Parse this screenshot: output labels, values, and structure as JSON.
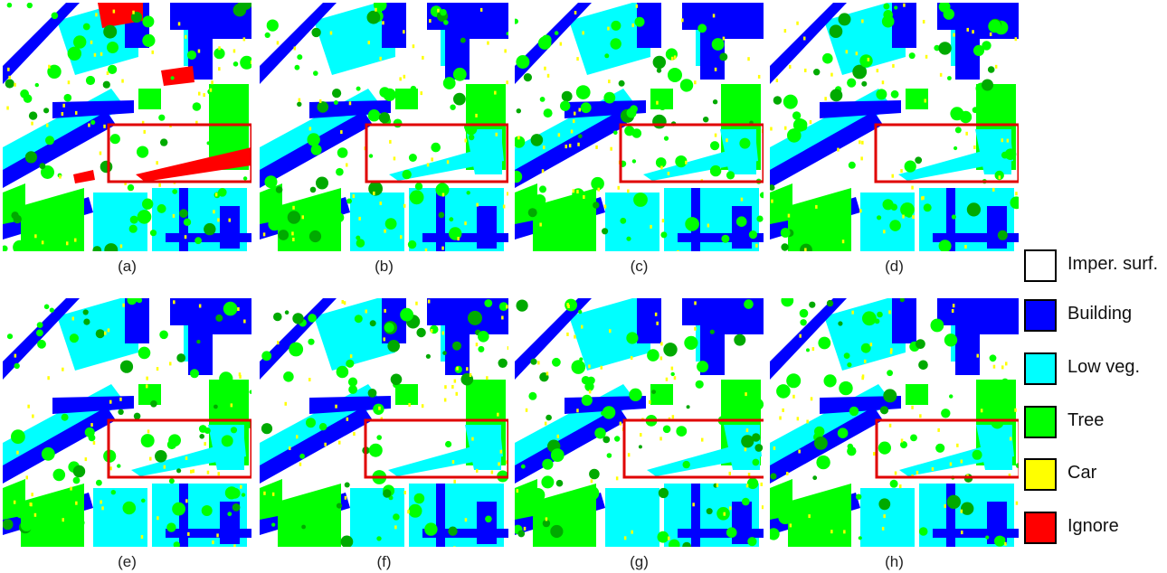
{
  "panels": [
    {
      "caption": "(a)",
      "variant": "ground-truth"
    },
    {
      "caption": "(b)",
      "variant": "prediction"
    },
    {
      "caption": "(c)",
      "variant": "prediction"
    },
    {
      "caption": "(d)",
      "variant": "prediction"
    },
    {
      "caption": "(e)",
      "variant": "prediction"
    },
    {
      "caption": "(f)",
      "variant": "prediction"
    },
    {
      "caption": "(g)",
      "variant": "prediction"
    },
    {
      "caption": "(h)",
      "variant": "prediction"
    }
  ],
  "legend": [
    {
      "label": "Imper. surf.",
      "color": "#ffffff"
    },
    {
      "label": "Building",
      "color": "#0000ff"
    },
    {
      "label": "Low veg.",
      "color": "#00ffff"
    },
    {
      "label": "Tree",
      "color": "#00ff00"
    },
    {
      "label": "Car",
      "color": "#ffff00"
    },
    {
      "label": "Ignore",
      "color": "#ff0000"
    }
  ],
  "colors": {
    "imper_surf": "#ffffff",
    "building": "#0000ff",
    "low_veg": "#00ffff",
    "tree": "#00ff00",
    "car": "#ffff00",
    "ignore": "#ff0000",
    "tree_dark": "#00aa00",
    "highlight_box": "#e00000"
  }
}
